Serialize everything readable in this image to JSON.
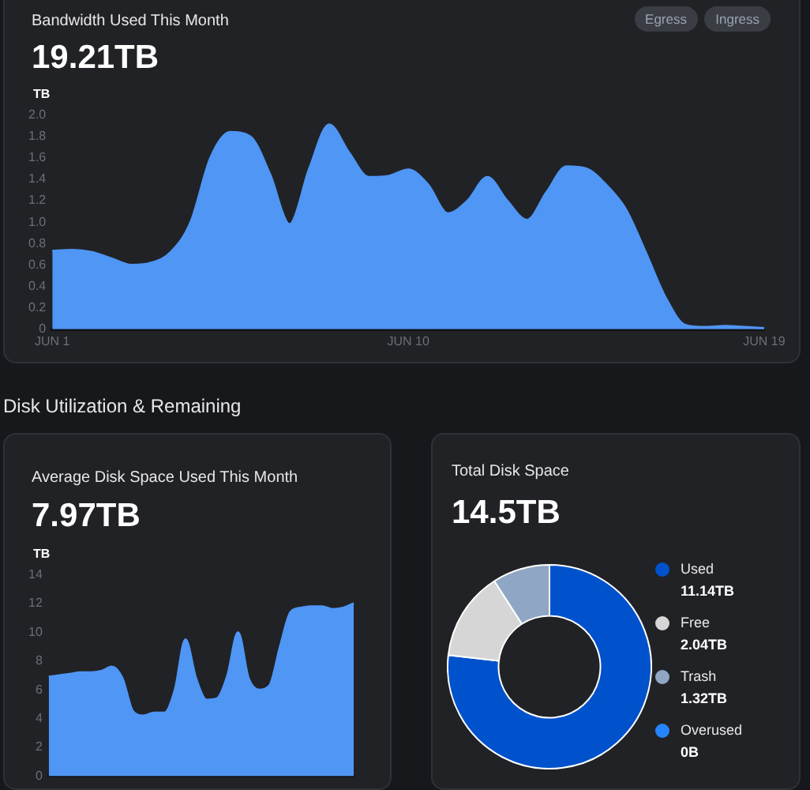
{
  "chart_data": [
    {
      "type": "area",
      "title": "Bandwidth Used This Month",
      "subtitle": "19.21TB",
      "ylabel": "TB",
      "annotations": [
        "Egress",
        "Ingress"
      ],
      "categories": [
        "JUN 1",
        null,
        null,
        null,
        null,
        null,
        null,
        null,
        null,
        null,
        null,
        null,
        null,
        null,
        null,
        null,
        null,
        null,
        "JUN 10",
        null,
        null,
        null,
        null,
        null,
        null,
        null,
        null,
        null,
        null,
        null,
        null,
        null,
        null,
        null,
        null,
        null,
        "JUN 19"
      ],
      "color": "#4f96f5",
      "values": [
        0.73,
        0.74,
        0.72,
        0.66,
        0.6,
        0.62,
        0.72,
        1.0,
        1.6,
        1.84,
        1.8,
        1.45,
        0.98,
        1.5,
        1.91,
        1.65,
        1.42,
        1.43,
        1.49,
        1.35,
        1.08,
        1.2,
        1.42,
        1.2,
        1.02,
        1.28,
        1.52,
        1.5,
        1.35,
        1.12,
        0.72,
        0.3,
        0.04,
        0.02,
        0.03,
        0.02,
        0.01
      ],
      "ylim": [
        0,
        2
      ],
      "yticks": [
        0,
        0.2,
        0.4,
        0.6,
        0.8,
        {
          "value": 1,
          "label": "1.0"
        },
        1.2,
        1.4,
        1.6,
        1.8,
        {
          "value": 2,
          "label": "2.0"
        }
      ]
    },
    {
      "type": "area",
      "title": "Average Disk Space Used This Month",
      "subtitle": "7.97TB",
      "ylabel": "TB",
      "annotations": [
        "Disk Utilization & Remaining"
      ],
      "categories": [
        null,
        null,
        null,
        null,
        null,
        null,
        null,
        null,
        null,
        null,
        null,
        null,
        null,
        null,
        null,
        null,
        null,
        null,
        null,
        null,
        null,
        null,
        null,
        null,
        null,
        null,
        null,
        null,
        null,
        null
      ],
      "color": "#4f96f5",
      "values": [
        6.9,
        7.0,
        7.1,
        7.2,
        7.2,
        7.3,
        7.6,
        6.8,
        4.5,
        4.2,
        4.4,
        4.4,
        6.0,
        9.5,
        6.8,
        5.3,
        5.4,
        7.0,
        10.0,
        6.8,
        6.0,
        6.3,
        9.0,
        11.4,
        11.7,
        11.8,
        11.8,
        11.6,
        11.7,
        12.0
      ],
      "ylim": [
        0,
        14
      ],
      "yticks": [
        0,
        2,
        4,
        6,
        8,
        10,
        12,
        14
      ]
    },
    {
      "type": "donut",
      "title": "Total Disk Space",
      "subtitle": "14.5TB",
      "categories": [
        "Used",
        "Free",
        "Trash",
        "Overused"
      ],
      "values": [
        11.14,
        2.04,
        1.32,
        0
      ],
      "colors": [
        "#0052cc",
        "#d6d6d6",
        "#8fa7c4",
        "#2684ff"
      ],
      "value_labels": [
        "11.14TB",
        "2.04TB",
        "1.32TB",
        "0B"
      ],
      "legend": "right"
    }
  ]
}
